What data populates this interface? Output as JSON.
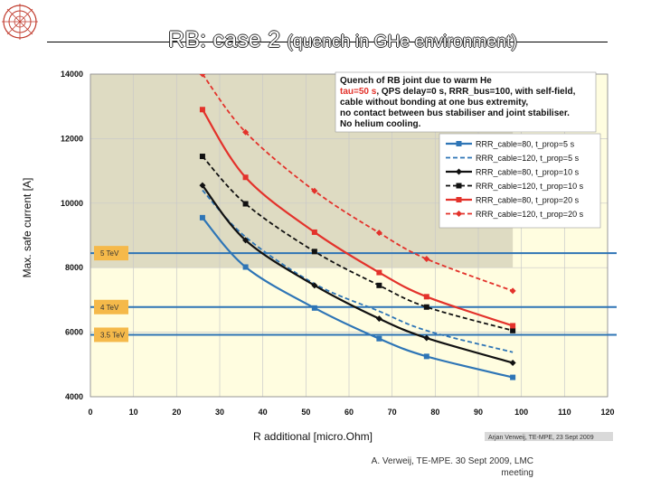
{
  "slide": {
    "title_main": "RB: case 2",
    "title_sub": "(quench in GHe environment)",
    "footer_line1": "A. Verweij, TE-MPE. 30 Sept 2009, LMC",
    "footer_line2": "meeting"
  },
  "chart_data": {
    "type": "line",
    "xlabel": "R additional [micro.Ohm]",
    "ylabel": "Max. safe current [A]",
    "xlim": [
      0,
      120
    ],
    "ylim": [
      4000,
      14000
    ],
    "x_ticks": [
      "0",
      "10",
      "20",
      "30",
      "40",
      "50",
      "60",
      "70",
      "80",
      "90",
      "100",
      "110",
      "120"
    ],
    "y_ticks": [
      "4000",
      "6000",
      "8000",
      "10000",
      "12000",
      "14000"
    ],
    "grid": "vertical and horizontal",
    "legend_position": "top-right",
    "shaded_region_above": 8000,
    "annotation": {
      "line1": "Quench of RB joint due to warm He",
      "line2_highlight": "tau=50 s",
      "line2_rest": ", QPS delay=0 s, RRR_bus=100, with self-field,",
      "line3": "cable without bonding at one bus extremity,",
      "line4": "no contact between bus stabiliser and joint stabiliser.",
      "line5": "No helium cooling."
    },
    "credit": "Arjan Verweij, TE-MPE, 23 Sept 2009",
    "reference_lines": [
      {
        "label": "5 TeV",
        "value": 8450,
        "color": "#2e74b5"
      },
      {
        "label": "4 TeV",
        "value": 6780,
        "color": "#2e74b5"
      },
      {
        "label": "3.5 TeV",
        "value": 5920,
        "color": "#2e74b5"
      }
    ],
    "series": [
      {
        "name": "RRR_cable=80, t_prop=5 s",
        "color": "#2e75b6",
        "dash": "solid",
        "marker": "square",
        "x": [
          26,
          36,
          52,
          67,
          78,
          98
        ],
        "y": [
          9550,
          8020,
          6750,
          5800,
          5250,
          4600
        ]
      },
      {
        "name": "RRR_cable=120, t_prop=5 s",
        "color": "#2e75b6",
        "dash": "dashed",
        "marker": "none",
        "x": [
          26,
          36,
          52,
          67,
          78,
          98
        ],
        "y": [
          10400,
          8950,
          7500,
          6650,
          6050,
          5380
        ]
      },
      {
        "name": "RRR_cable=80, t_prop=10 s",
        "color": "#111111",
        "dash": "solid",
        "marker": "diamond",
        "x": [
          26,
          36,
          52,
          67,
          78,
          98
        ],
        "y": [
          10550,
          8850,
          7450,
          6420,
          5820,
          5050
        ]
      },
      {
        "name": "RRR_cable=120, t_prop=10 s",
        "color": "#111111",
        "dash": "dashed",
        "marker": "square",
        "x": [
          26,
          36,
          52,
          67,
          78,
          98
        ],
        "y": [
          11450,
          9980,
          8500,
          7450,
          6780,
          6050
        ]
      },
      {
        "name": "RRR_cable=80, t_prop=20 s",
        "color": "#e3322b",
        "dash": "solid",
        "marker": "square",
        "x": [
          26,
          36,
          52,
          67,
          78,
          98
        ],
        "y": [
          12900,
          10800,
          9100,
          7850,
          7100,
          6200
        ]
      },
      {
        "name": "RRR_cable=120, t_prop=20 s",
        "color": "#e3322b",
        "dash": "dashed",
        "marker": "diamond",
        "x": [
          26,
          36,
          52,
          67,
          78,
          98
        ],
        "y": [
          14000,
          12200,
          10380,
          9080,
          8270,
          7280
        ]
      }
    ]
  }
}
